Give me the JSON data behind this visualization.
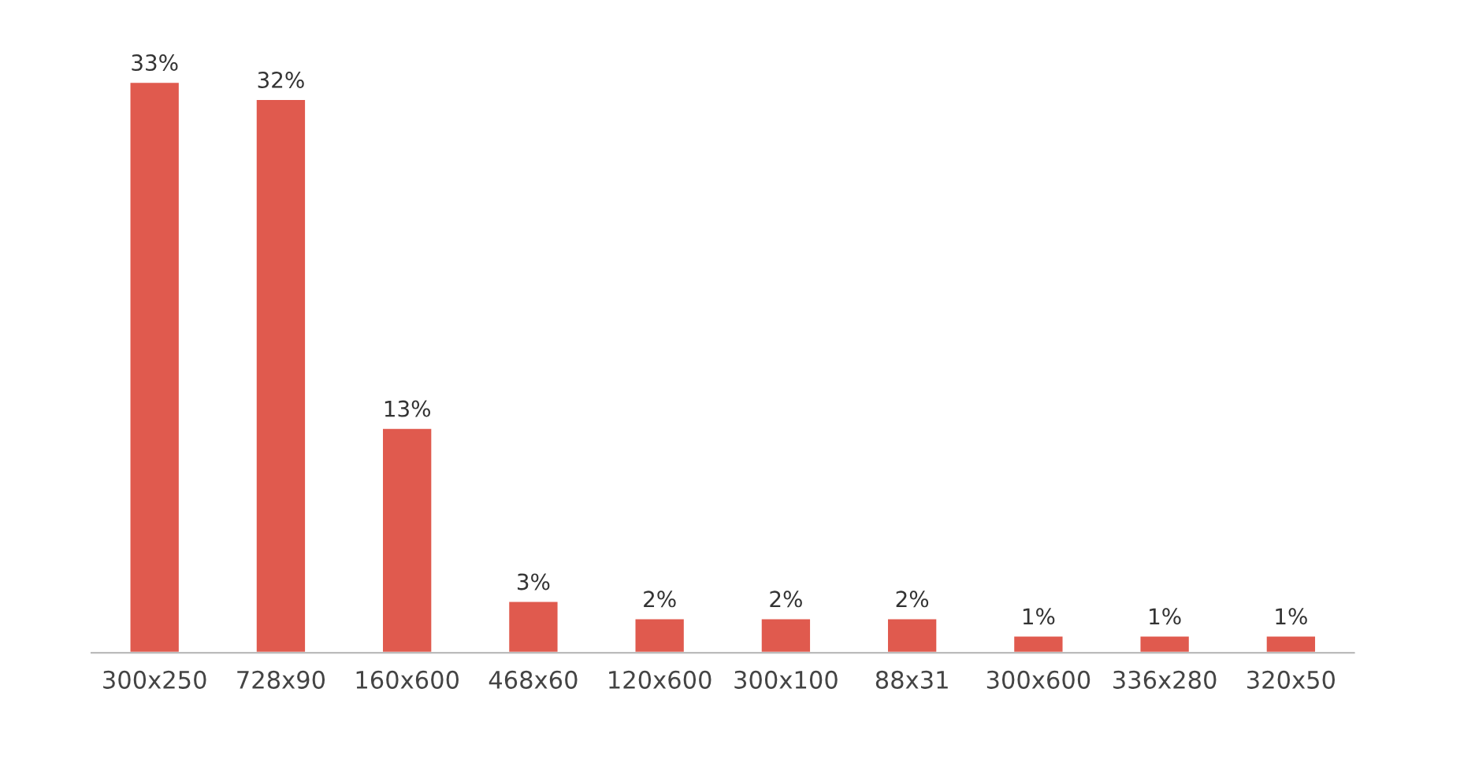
{
  "chart_data": {
    "type": "bar",
    "categories": [
      "300x250",
      "728x90",
      "160x600",
      "468x60",
      "120x600",
      "300x100",
      "88x31",
      "300x600",
      "336x280",
      "320x50"
    ],
    "values": [
      33,
      32,
      13,
      3,
      2,
      2,
      2,
      1,
      1,
      1
    ],
    "value_labels": [
      "33%",
      "32%",
      "13%",
      "3%",
      "2%",
      "2%",
      "2%",
      "1%",
      "1%",
      "1%"
    ],
    "color": "#e05a4e",
    "grid": false,
    "legend": false,
    "tick_labels": "x"
  }
}
